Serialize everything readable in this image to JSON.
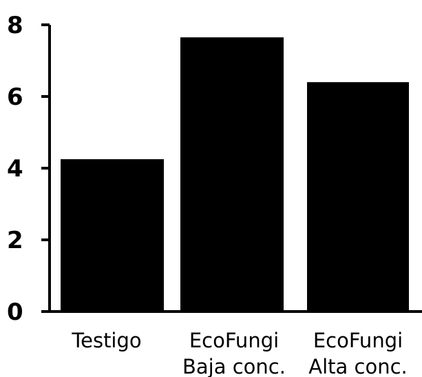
{
  "chart_data": {
    "type": "bar",
    "categories": [
      [
        "Testigo"
      ],
      [
        "EcoFungi",
        "Baja conc."
      ],
      [
        "EcoFungi",
        "Alta conc."
      ]
    ],
    "values": [
      4.25,
      7.65,
      6.4
    ],
    "yticks": [
      "0",
      "2",
      "4",
      "6",
      "8"
    ],
    "ylim": [
      0,
      8
    ],
    "bar_color": "#000000",
    "axis_color": "#000000",
    "grid": false,
    "legend": "none"
  }
}
